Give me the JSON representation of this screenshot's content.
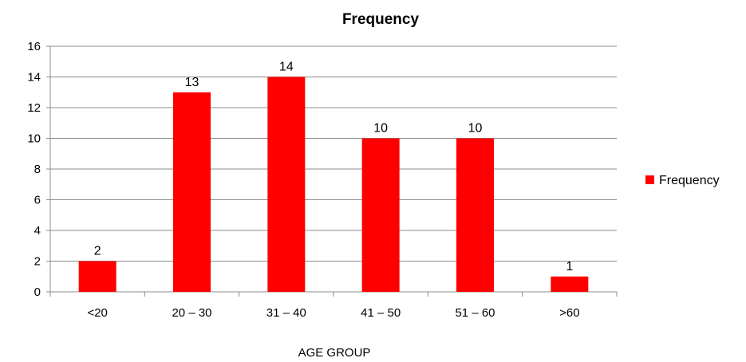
{
  "chart_data": {
    "type": "bar",
    "title": "Frequency",
    "xlabel": "AGE GROUP",
    "ylabel": "",
    "categories": [
      "<20",
      "20 – 30",
      "31 – 40",
      "41 – 50",
      "51 – 60",
      ">60"
    ],
    "series": [
      {
        "name": "Frequency",
        "values": [
          2,
          13,
          14,
          10,
          10,
          1
        ],
        "color": "#ff0000"
      }
    ],
    "ylim": [
      0,
      16
    ],
    "yticks": [
      0,
      2,
      4,
      6,
      8,
      10,
      12,
      14,
      16
    ],
    "grid": true,
    "legend_position": "right",
    "data_labels": true
  }
}
